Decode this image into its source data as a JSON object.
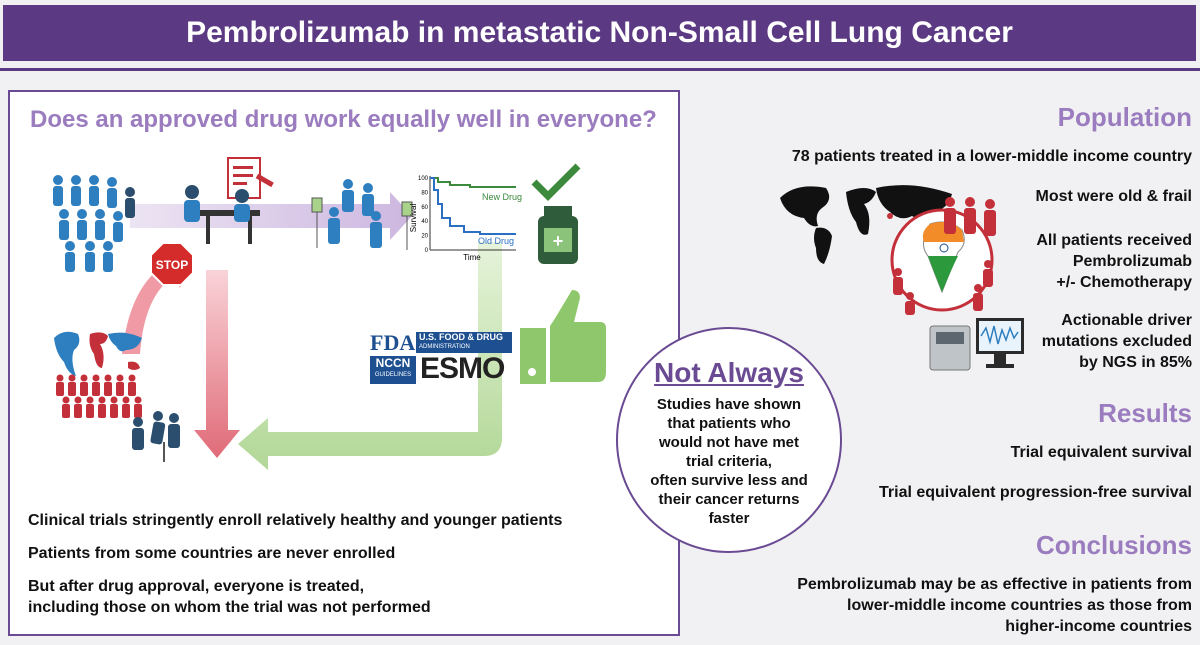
{
  "title": "Pembrolizumab in metastatic Non-Small Cell Lung Cancer",
  "left_panel": {
    "question": "Does an approved drug work equally well in everyone?",
    "stop_sign": "STOP",
    "chart": {
      "ylabel": "Survival",
      "xlabel": "Time",
      "y_ticks": [
        "100",
        "80",
        "60",
        "40",
        "20",
        "0"
      ],
      "series": [
        {
          "name": "New Drug",
          "color": "#3c8a3c"
        },
        {
          "name": "Old Drug",
          "color": "#2b6fc4"
        }
      ]
    },
    "logos": {
      "fda": "FDA",
      "fda_line1": "U.S. FOOD & DRUG",
      "fda_line2": "ADMINISTRATION",
      "nccn": "NCCN",
      "nccn_sub": "GUIDELINES",
      "esmo": "ESMO"
    },
    "bullets": [
      "Clinical trials stringently enroll relatively healthy and younger patients",
      "Patients from some countries are never enrolled",
      "But after drug approval, everyone is treated,",
      "including those on whom the trial was not performed"
    ]
  },
  "not_always": {
    "title": "Not Always",
    "text": [
      "Studies have shown",
      "that patients who",
      "would not have met",
      "trial criteria,",
      "often survive less and",
      "their cancer returns",
      "faster"
    ]
  },
  "population": {
    "heading": "Population",
    "items": [
      "78 patients treated in a lower-middle income country",
      "Most were old & frail",
      "All patients received",
      "Pembrolizumab",
      "+/- Chemotherapy",
      "Actionable driver",
      "mutations excluded",
      "by NGS in 85%"
    ]
  },
  "results": {
    "heading": "Results",
    "items": [
      "Trial equivalent survival",
      "Trial equivalent progression-free survival"
    ]
  },
  "conclusions": {
    "heading": "Conclusions",
    "lines": [
      "Pembrolizumab may be as effective in patients from",
      "lower-middle income countries as those from",
      "higher-income countries"
    ]
  },
  "colors": {
    "banner": "#5b3a83",
    "heading": "#9a7cbf",
    "people_blue": "#2e7fc0",
    "people_red": "#c4303a",
    "arrow_red": "#e88c96",
    "arrow_green": "#a9d38b",
    "arrow_purple": "#d9cbe6"
  }
}
